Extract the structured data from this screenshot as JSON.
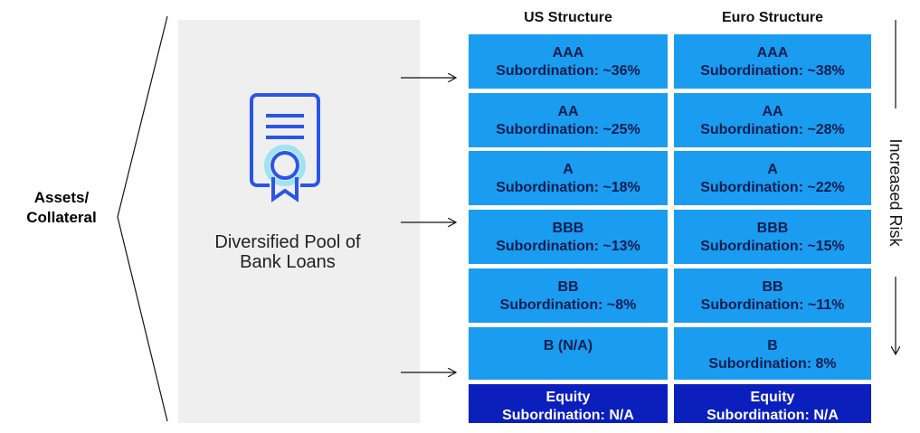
{
  "left_label": {
    "line1": "Assets/",
    "line2": "Collateral"
  },
  "pool": {
    "line1": "Diversified Pool of",
    "line2": "Bank Loans"
  },
  "risk_label": "Increased Risk",
  "columns": [
    {
      "title": "US Structure",
      "rows": [
        {
          "rating": "AAA",
          "subordination": "Subordination: ~36%"
        },
        {
          "rating": "AA",
          "subordination": "Subordination: ~25%"
        },
        {
          "rating": "A",
          "subordination": "Subordination: ~18%"
        },
        {
          "rating": "BBB",
          "subordination": "Subordination: ~13%"
        },
        {
          "rating": "BB",
          "subordination": "Subordination: ~8%"
        },
        {
          "rating": "B (N/A)"
        },
        {
          "rating": "Equity",
          "subordination": "Subordination: N/A"
        }
      ]
    },
    {
      "title": "Euro Structure",
      "rows": [
        {
          "rating": "AAA",
          "subordination": "Subordination: ~38%"
        },
        {
          "rating": "AA",
          "subordination": "Subordination: ~28%"
        },
        {
          "rating": "A",
          "subordination": "Subordination: ~22%"
        },
        {
          "rating": "BBB",
          "subordination": "Subordination: ~15%"
        },
        {
          "rating": "BB",
          "subordination": "Subordination: ~11%"
        },
        {
          "rating": "B",
          "subordination": "Subordination: 8%"
        },
        {
          "rating": "Equity",
          "subordination": "Subordination: N/A"
        }
      ]
    }
  ]
}
